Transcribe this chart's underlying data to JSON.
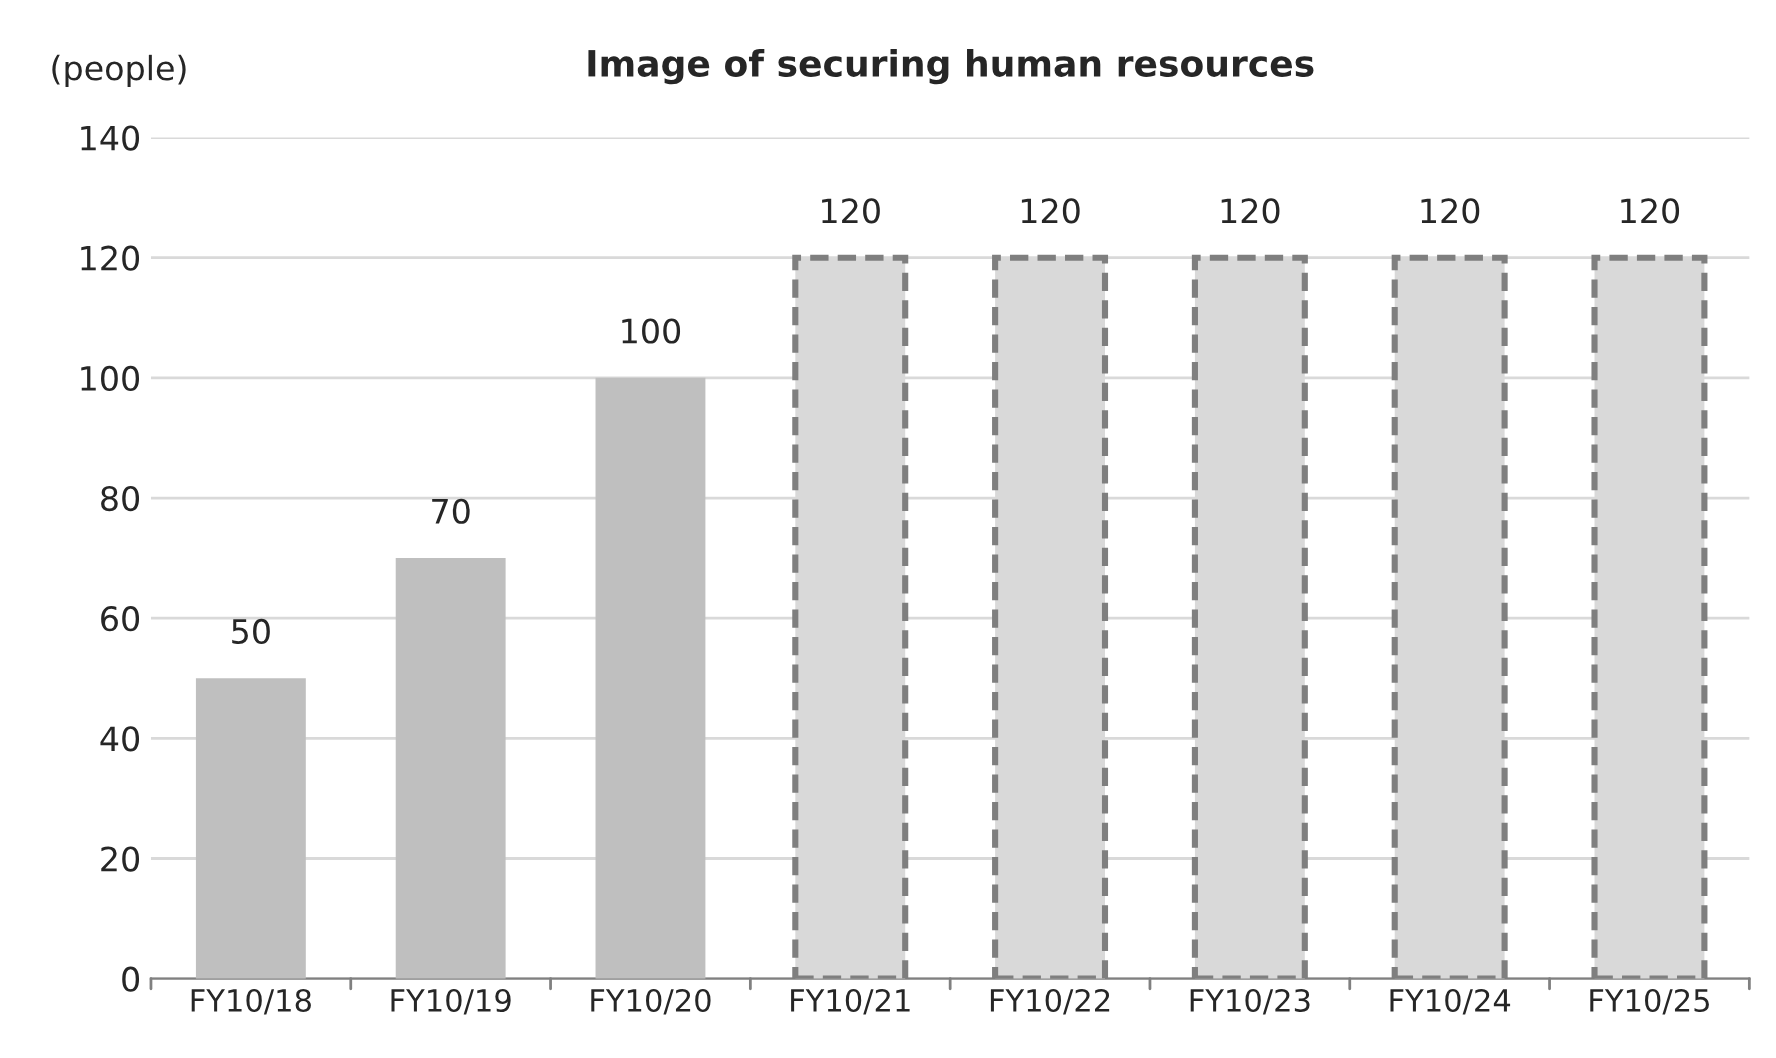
{
  "chart_data": {
    "type": "bar",
    "title": "Image of securing human resources",
    "ylabel": "(people)",
    "categories": [
      "FY10/18",
      "FY10/19",
      "FY10/20",
      "FY10/21",
      "FY10/22",
      "FY10/23",
      "FY10/24",
      "FY10/25"
    ],
    "series": [
      {
        "color": "#bfbfbf",
        "values": [
          50,
          70,
          100,
          null,
          null,
          null,
          null,
          null
        ]
      },
      {
        "color": "#d9d9d9",
        "line_style": "dashed",
        "values": [
          null,
          null,
          null,
          120,
          120,
          120,
          120,
          120
        ]
      }
    ],
    "ylim": [
      0,
      140
    ],
    "yticks": [
      0,
      20,
      40,
      60,
      80,
      100,
      120,
      140
    ],
    "grid": "y",
    "data_labels": true,
    "legend": false
  }
}
